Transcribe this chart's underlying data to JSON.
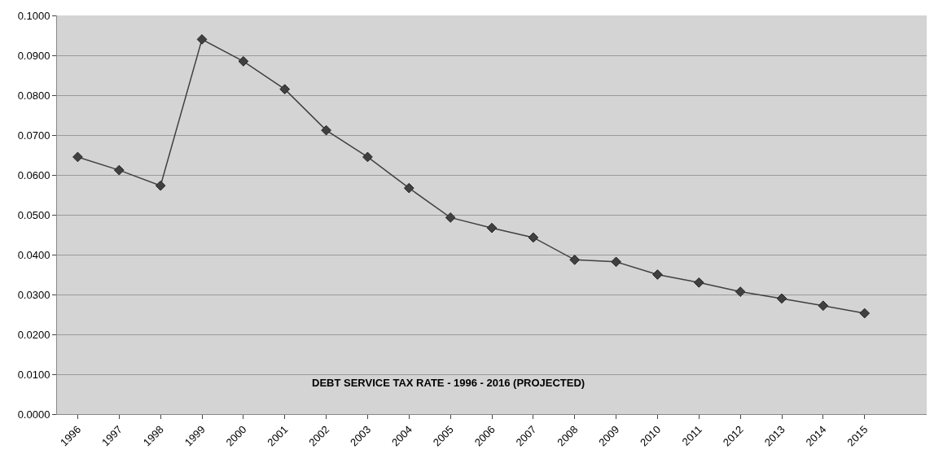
{
  "chart_data": {
    "type": "line",
    "categories": [
      "1996",
      "1997",
      "1998",
      "1999",
      "2000",
      "2001",
      "2002",
      "2003",
      "2004",
      "2005",
      "2006",
      "2007",
      "2008",
      "2009",
      "2010",
      "2011",
      "2012",
      "2013",
      "2014",
      "2015"
    ],
    "series": [
      {
        "color": "#404040",
        "values": [
          0.0645,
          0.0612,
          0.0573,
          0.094,
          0.0885,
          0.0815,
          0.0712,
          0.0645,
          0.0567,
          0.0493,
          0.0467,
          0.0443,
          0.0387,
          0.0382,
          0.035,
          0.033,
          0.0307,
          0.029,
          0.0272,
          0.0253
        ]
      }
    ],
    "ylim": [
      0,
      0.1
    ],
    "yticks": [
      {
        "value": 0,
        "label": "0.0000"
      },
      {
        "value": 0.01,
        "label": "0.0100"
      },
      {
        "value": 0.02,
        "label": "0.0200"
      },
      {
        "value": 0.03,
        "label": "0.0300"
      },
      {
        "value": 0.04,
        "label": "0.0400"
      },
      {
        "value": 0.05,
        "label": "0.0500"
      },
      {
        "value": 0.06,
        "label": "0.0600"
      },
      {
        "value": 0.07,
        "label": "0.0700"
      },
      {
        "value": 0.08,
        "label": "0.0800"
      },
      {
        "value": 0.09,
        "label": "0.0900"
      },
      {
        "value": 0.1,
        "label": "0.1000"
      }
    ],
    "grid": "y",
    "marker": "diamond",
    "line_style": "solid",
    "annotations": [
      "DEBT SERVICE TAX RATE - 1996 - 2016 (PROJECTED)"
    ]
  }
}
